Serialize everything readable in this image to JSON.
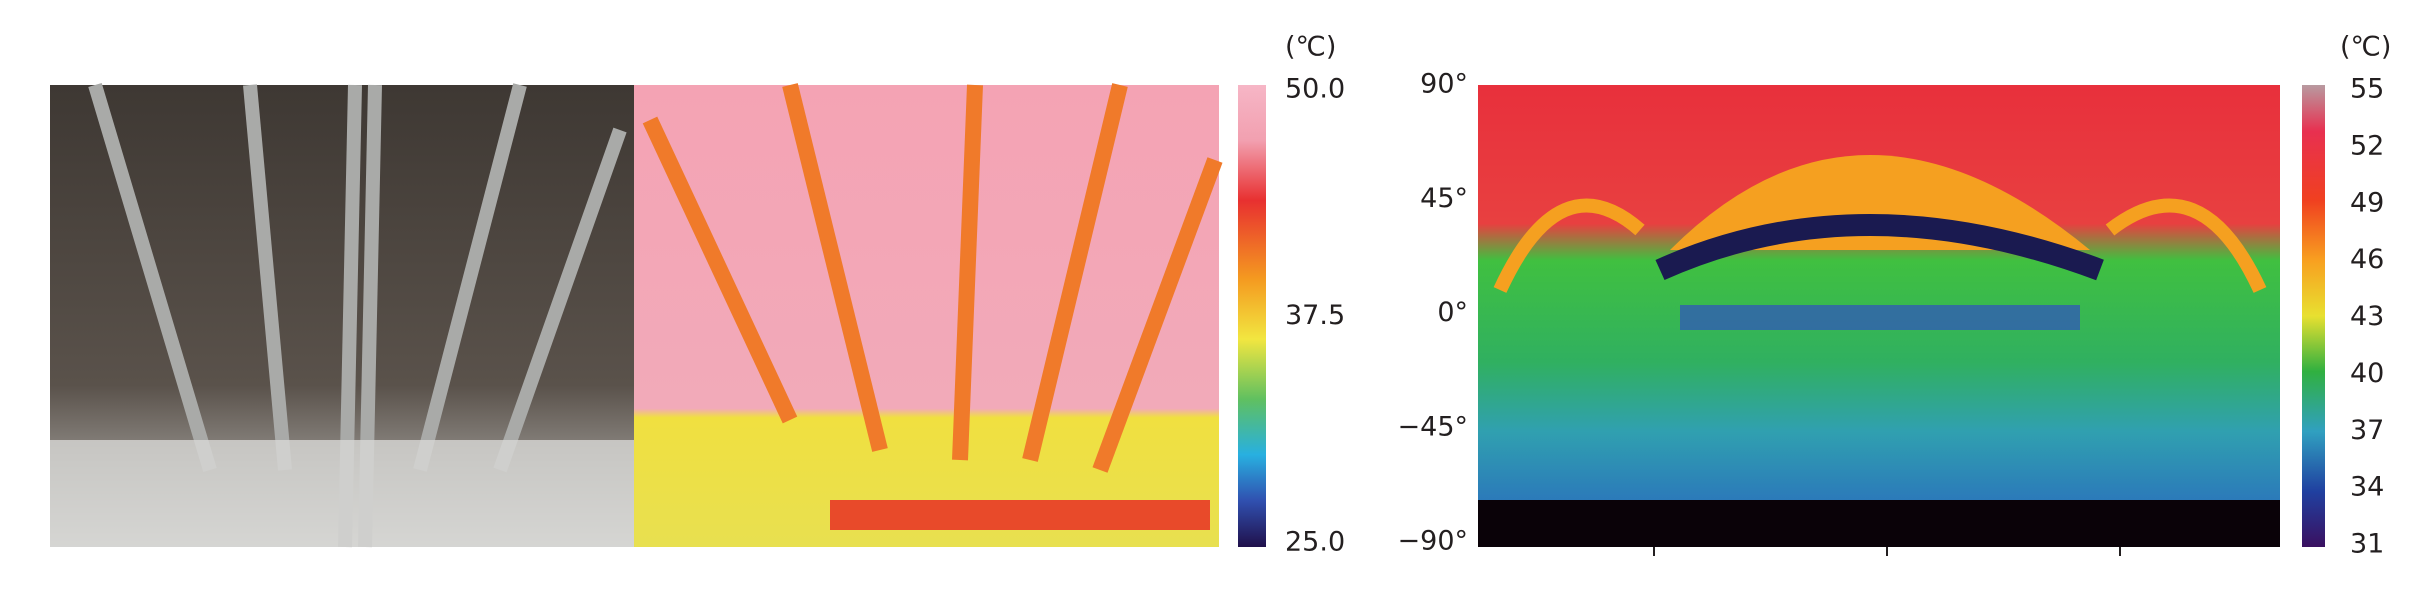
{
  "left_panel": {
    "scale_unit": "(℃)",
    "scale_ticks": [
      "50.0",
      "37.5",
      "25.0"
    ]
  },
  "right_panel": {
    "scale_unit": "(℃)",
    "scale_ticks": [
      "55",
      "52",
      "49",
      "46",
      "43",
      "40",
      "37",
      "34",
      "31"
    ],
    "y_axis_labels": [
      "90°",
      "45°",
      "0°",
      "−45°",
      "−90°"
    ]
  }
}
